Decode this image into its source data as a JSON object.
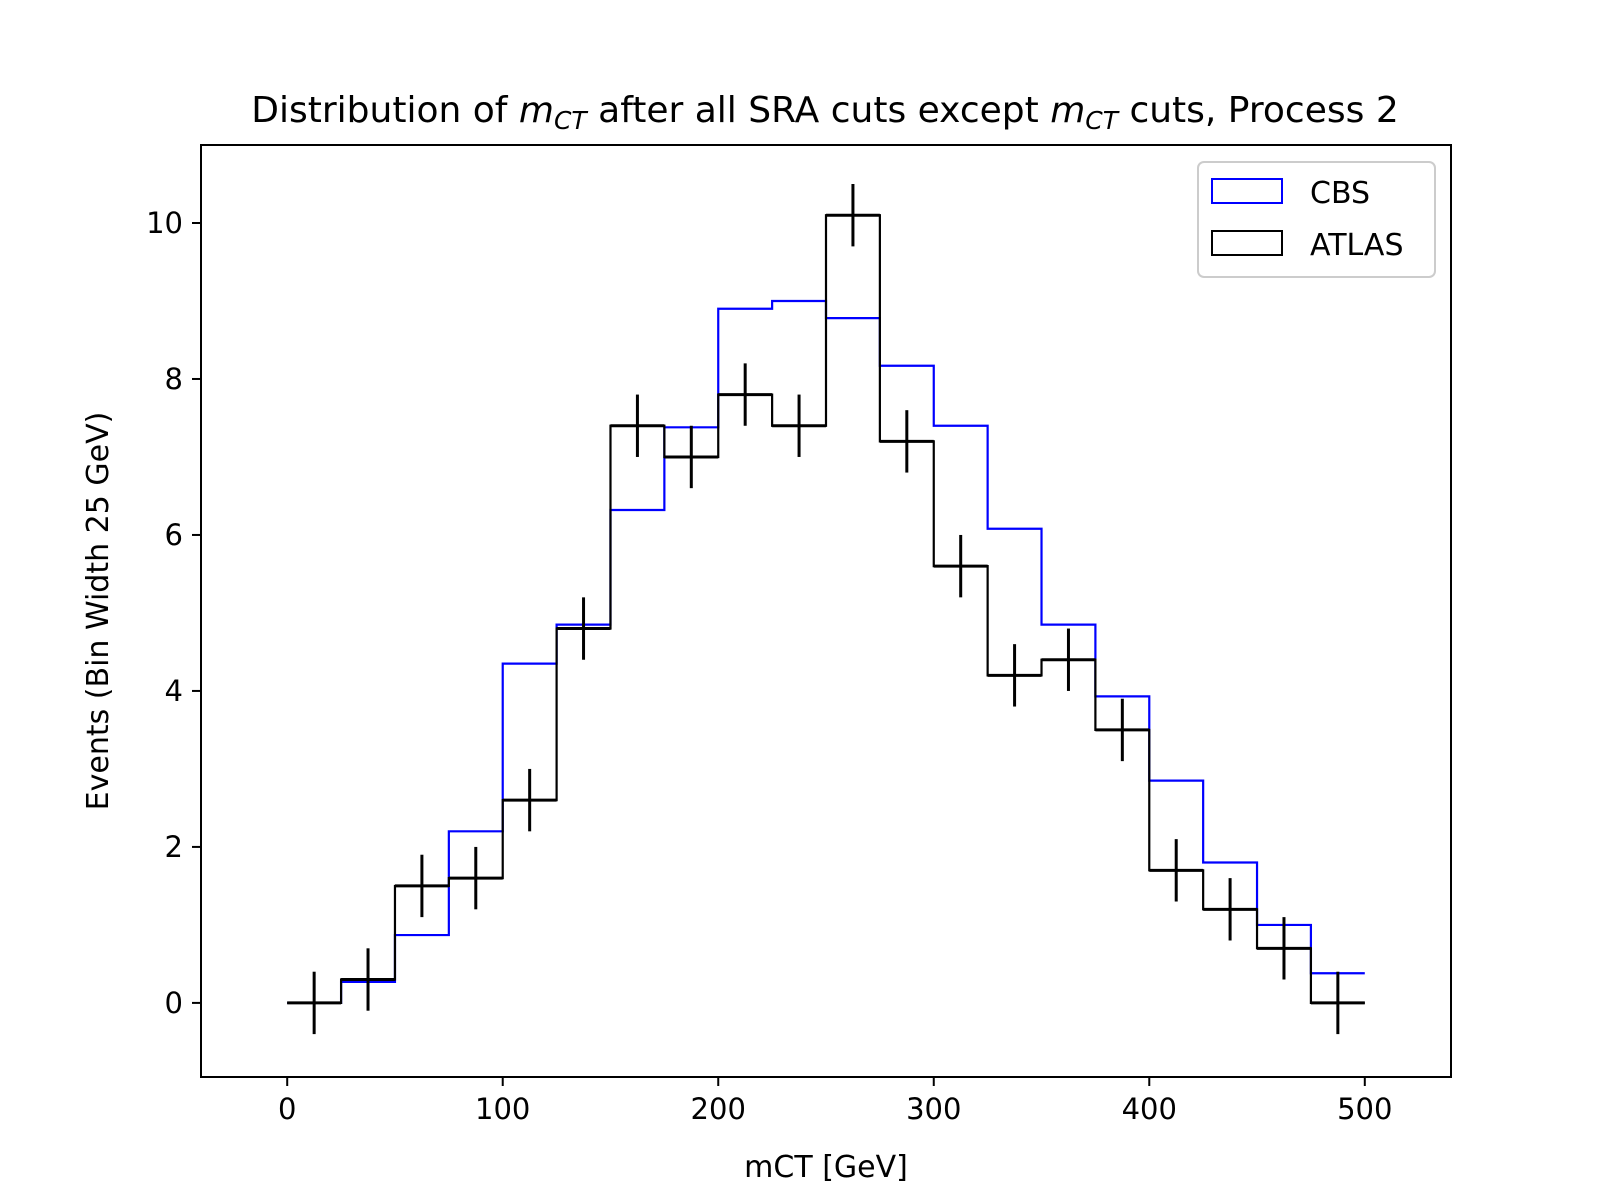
{
  "chart_data": {
    "type": "histogram-step",
    "title": {
      "prefix": "Distribution of ",
      "var1": "m",
      "var1_sub": "CT",
      "middle": " after all SRA cuts except ",
      "var2": "m",
      "var2_sub": "CT",
      "suffix": " cuts, Process 2"
    },
    "xlabel": "mCT [GeV]",
    "ylabel": "Events (Bin Width 25 GeV)",
    "xlim": [
      -40,
      540
    ],
    "ylim": [
      -0.95,
      11.0
    ],
    "xticks": [
      0,
      100,
      200,
      300,
      400,
      500
    ],
    "yticks": [
      0,
      2,
      4,
      6,
      8,
      10
    ],
    "bin_edges": [
      0,
      25,
      50,
      75,
      100,
      125,
      150,
      175,
      200,
      225,
      250,
      275,
      300,
      325,
      350,
      375,
      400,
      425,
      450,
      475,
      500
    ],
    "series": [
      {
        "name": "CBS",
        "color": "#0000ff",
        "style": "step",
        "values": [
          0.0,
          0.27,
          0.87,
          2.2,
          4.35,
          4.85,
          6.32,
          7.38,
          8.9,
          9.0,
          8.78,
          8.17,
          7.4,
          6.08,
          4.85,
          3.93,
          2.85,
          1.8,
          1.0,
          0.38
        ]
      },
      {
        "name": "ATLAS",
        "color": "#000000",
        "style": "step-with-errorbars",
        "values": [
          0.0,
          0.3,
          1.5,
          1.6,
          2.6,
          4.8,
          7.4,
          7.0,
          7.8,
          7.4,
          10.1,
          7.2,
          5.6,
          4.2,
          4.4,
          3.5,
          1.7,
          1.2,
          0.7,
          0.0
        ],
        "errors": [
          0.4,
          0.4,
          0.4,
          0.4,
          0.4,
          0.4,
          0.4,
          0.4,
          0.4,
          0.4,
          0.4,
          0.4,
          0.4,
          0.4,
          0.4,
          0.4,
          0.4,
          0.4,
          0.4,
          0.4
        ]
      }
    ],
    "legend_position": "top-right",
    "grid": false
  }
}
